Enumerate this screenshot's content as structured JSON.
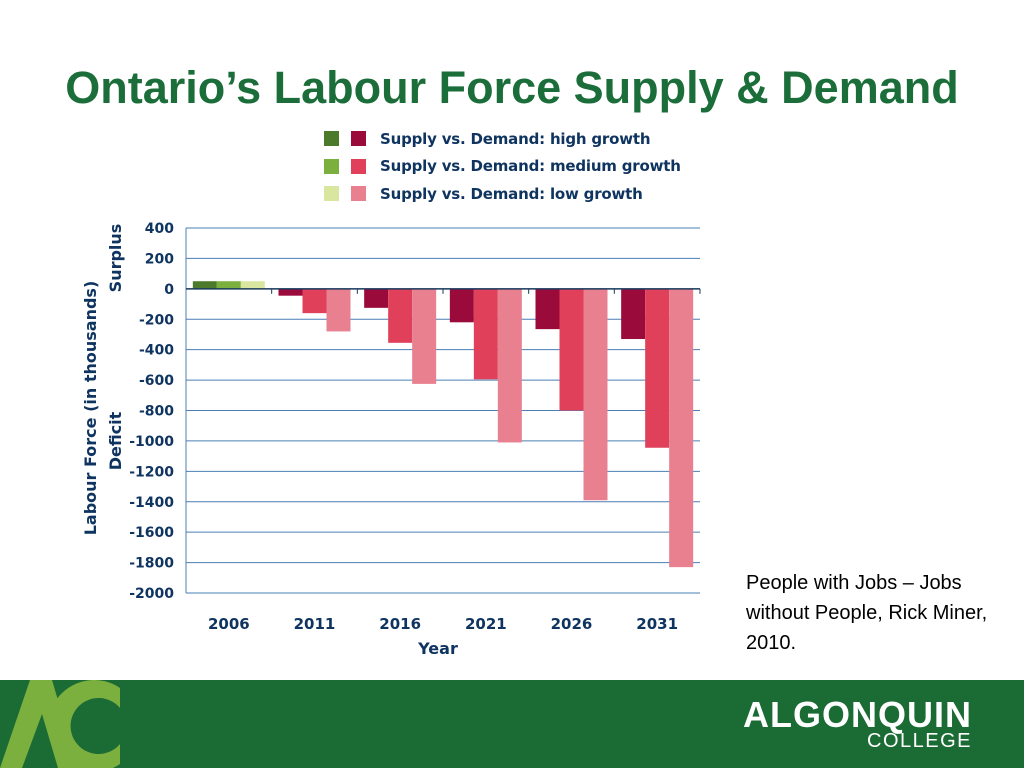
{
  "slide": {
    "title": "Ontario’s Labour Force Supply & Demand",
    "source_note": "People with Jobs – Jobs without People, Rick Miner, 2010.",
    "logo": {
      "name": "ALGONQUIN",
      "sub": "COLLEGE",
      "mark_text": "AC"
    }
  },
  "chart_data": {
    "type": "bar",
    "categories": [
      "2006",
      "2011",
      "2016",
      "2021",
      "2026",
      "2031"
    ],
    "series": [
      {
        "name": "Supply vs. Demand: high growth",
        "values": [
          50,
          -45,
          -125,
          -220,
          -265,
          -330
        ]
      },
      {
        "name": "Supply vs. Demand: medium growth",
        "values": [
          50,
          -160,
          -355,
          -595,
          -800,
          -1045
        ]
      },
      {
        "name": "Supply vs. Demand: low growth",
        "values": [
          50,
          -280,
          -625,
          -1010,
          -1390,
          -1830
        ]
      }
    ],
    "colors": {
      "positive": [
        "#4a7a2a",
        "#7bb03e",
        "#d8e6a0"
      ],
      "negative": [
        "#9a0a3a",
        "#e0405a",
        "#e88090"
      ]
    },
    "ylim": [
      -2000,
      400
    ],
    "yticks": [
      400,
      200,
      0,
      -200,
      -400,
      -600,
      -800,
      -1000,
      -1200,
      -1400,
      -1600,
      -1800,
      -2000
    ],
    "xlabel": "Year",
    "ylabel": "Labour Force (in thousands)",
    "ylabel_top": "Surplus",
    "ylabel_bottom": "Deficit",
    "grid": true,
    "legend_position": "top"
  }
}
